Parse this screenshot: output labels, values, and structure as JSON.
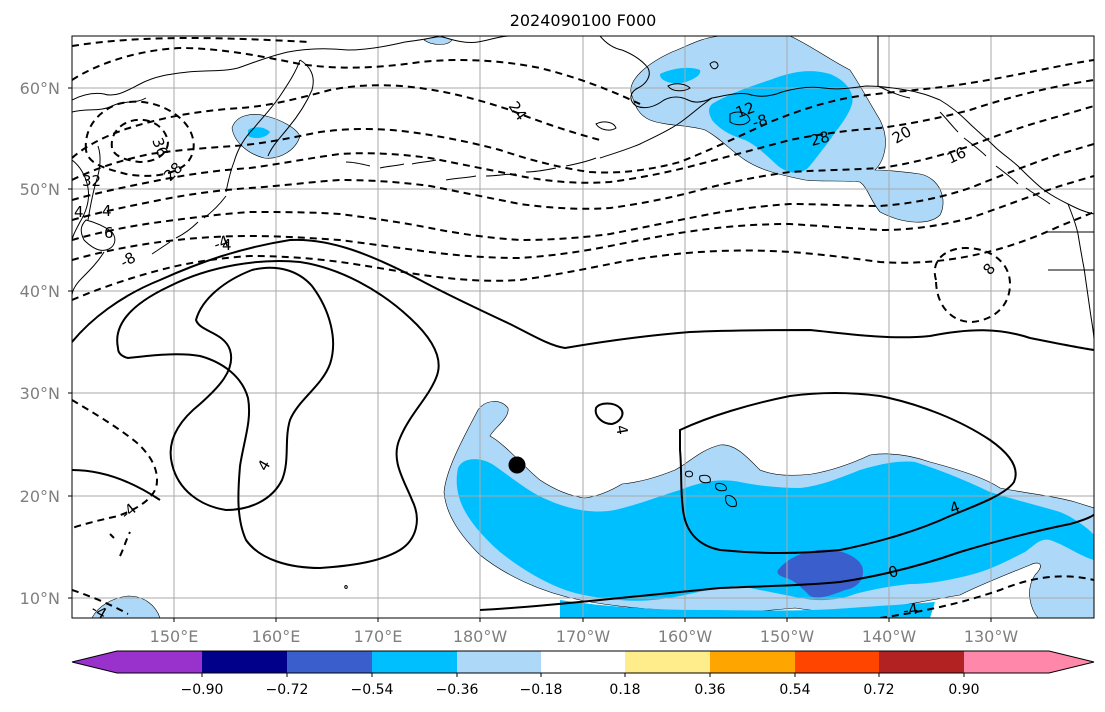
{
  "title": "2024090100 F000",
  "map": {
    "lat_ticks": [
      "60°N",
      "50°N",
      "40°N",
      "30°N",
      "20°N",
      "10°N"
    ],
    "lon_ticks": [
      "150°E",
      "160°E",
      "170°E",
      "180°W",
      "170°W",
      "160°W",
      "150°W",
      "140°W",
      "130°W"
    ]
  },
  "contour_labels": [
    "36",
    "32",
    "28",
    "24",
    "20",
    "16",
    "12",
    "8",
    "4",
    "4",
    "6",
    "-8",
    "-4",
    "4",
    "4",
    "4",
    "0",
    "-4",
    "-4",
    "-4",
    "28",
    "-8",
    "4"
  ],
  "colorbar": {
    "tick_labels": [
      "−0.90",
      "−0.72",
      "−0.54",
      "−0.36",
      "−0.18",
      "0.18",
      "0.36",
      "0.54",
      "0.72",
      "0.90"
    ],
    "colors": [
      "#9932cc",
      "#00008b",
      "#3a5fcd",
      "#00bfff",
      "#add8f7",
      "#ffffff",
      "#ffec8b",
      "#ffa500",
      "#ff4500",
      "#b22222",
      "#ff88aa"
    ]
  },
  "shading_colors": {
    "light_blue": "#add8f7",
    "sky_blue": "#00bfff",
    "royal_blue": "#3a5fcd"
  }
}
